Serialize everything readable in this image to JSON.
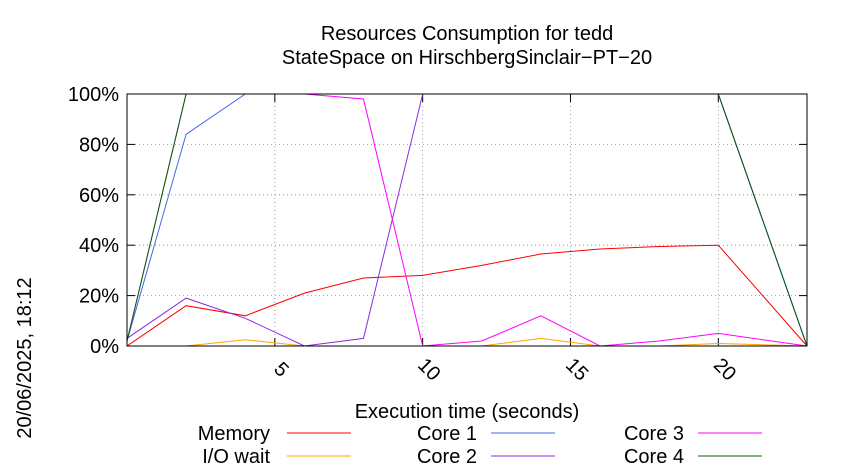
{
  "chart_data": {
    "type": "line",
    "title": "Resources Consumption for tedd",
    "subtitle": "StateSpace on HirschbergSinclair−PT−20",
    "xlabel": "Execution time (seconds)",
    "ylabel": "",
    "side_label": "20/06/2025, 18:12",
    "xlim": [
      0,
      23
    ],
    "ylim": [
      0,
      100
    ],
    "x_ticks": [
      5,
      10,
      15,
      20
    ],
    "y_ticks": [
      0,
      20,
      40,
      60,
      80,
      100
    ],
    "y_tick_suffix": "%",
    "grid": true,
    "legend_position": "bottom",
    "series": [
      {
        "name": "Memory",
        "color": "#ff0000",
        "x": [
          0,
          2,
          4,
          6,
          8,
          10,
          12,
          14,
          16,
          18,
          20,
          23
        ],
        "values": [
          0,
          16,
          12,
          21,
          27,
          28,
          32,
          36.5,
          38.5,
          39.5,
          40,
          0
        ]
      },
      {
        "name": "I/O wait",
        "color": "#ffa500",
        "x": [
          0,
          2,
          4,
          6,
          8,
          10,
          12,
          14,
          16,
          18,
          20,
          23
        ],
        "values": [
          0,
          0,
          2.5,
          0,
          0,
          0,
          0,
          3,
          0,
          0,
          1,
          0
        ]
      },
      {
        "name": "Core 1",
        "color": "#4169e1",
        "x": [
          0,
          2,
          4,
          6,
          8,
          10,
          12,
          14,
          16,
          18,
          20,
          23
        ],
        "values": [
          2,
          84,
          100,
          100,
          100,
          100,
          100,
          100,
          100,
          100,
          100,
          0
        ]
      },
      {
        "name": "Core 2",
        "color": "#8a2be2",
        "x": [
          0,
          2,
          4,
          6,
          8,
          10,
          12,
          14,
          16,
          18,
          20,
          23
        ],
        "values": [
          3,
          19,
          11,
          0,
          3,
          100,
          100,
          100,
          100,
          100,
          100,
          0
        ]
      },
      {
        "name": "Core 3",
        "color": "#ff00ff",
        "x": [
          0,
          2,
          4,
          6,
          8,
          10,
          12,
          14,
          16,
          18,
          20,
          23
        ],
        "values": [
          2,
          100,
          100,
          100,
          98,
          0,
          2,
          12,
          0,
          2,
          5,
          0
        ]
      },
      {
        "name": "Core 4",
        "color": "#006400",
        "x": [
          0,
          2,
          4,
          6,
          8,
          10,
          12,
          14,
          16,
          18,
          20,
          23
        ],
        "values": [
          2,
          100,
          100,
          100,
          100,
          100,
          100,
          100,
          100,
          100,
          100,
          0
        ]
      }
    ]
  }
}
